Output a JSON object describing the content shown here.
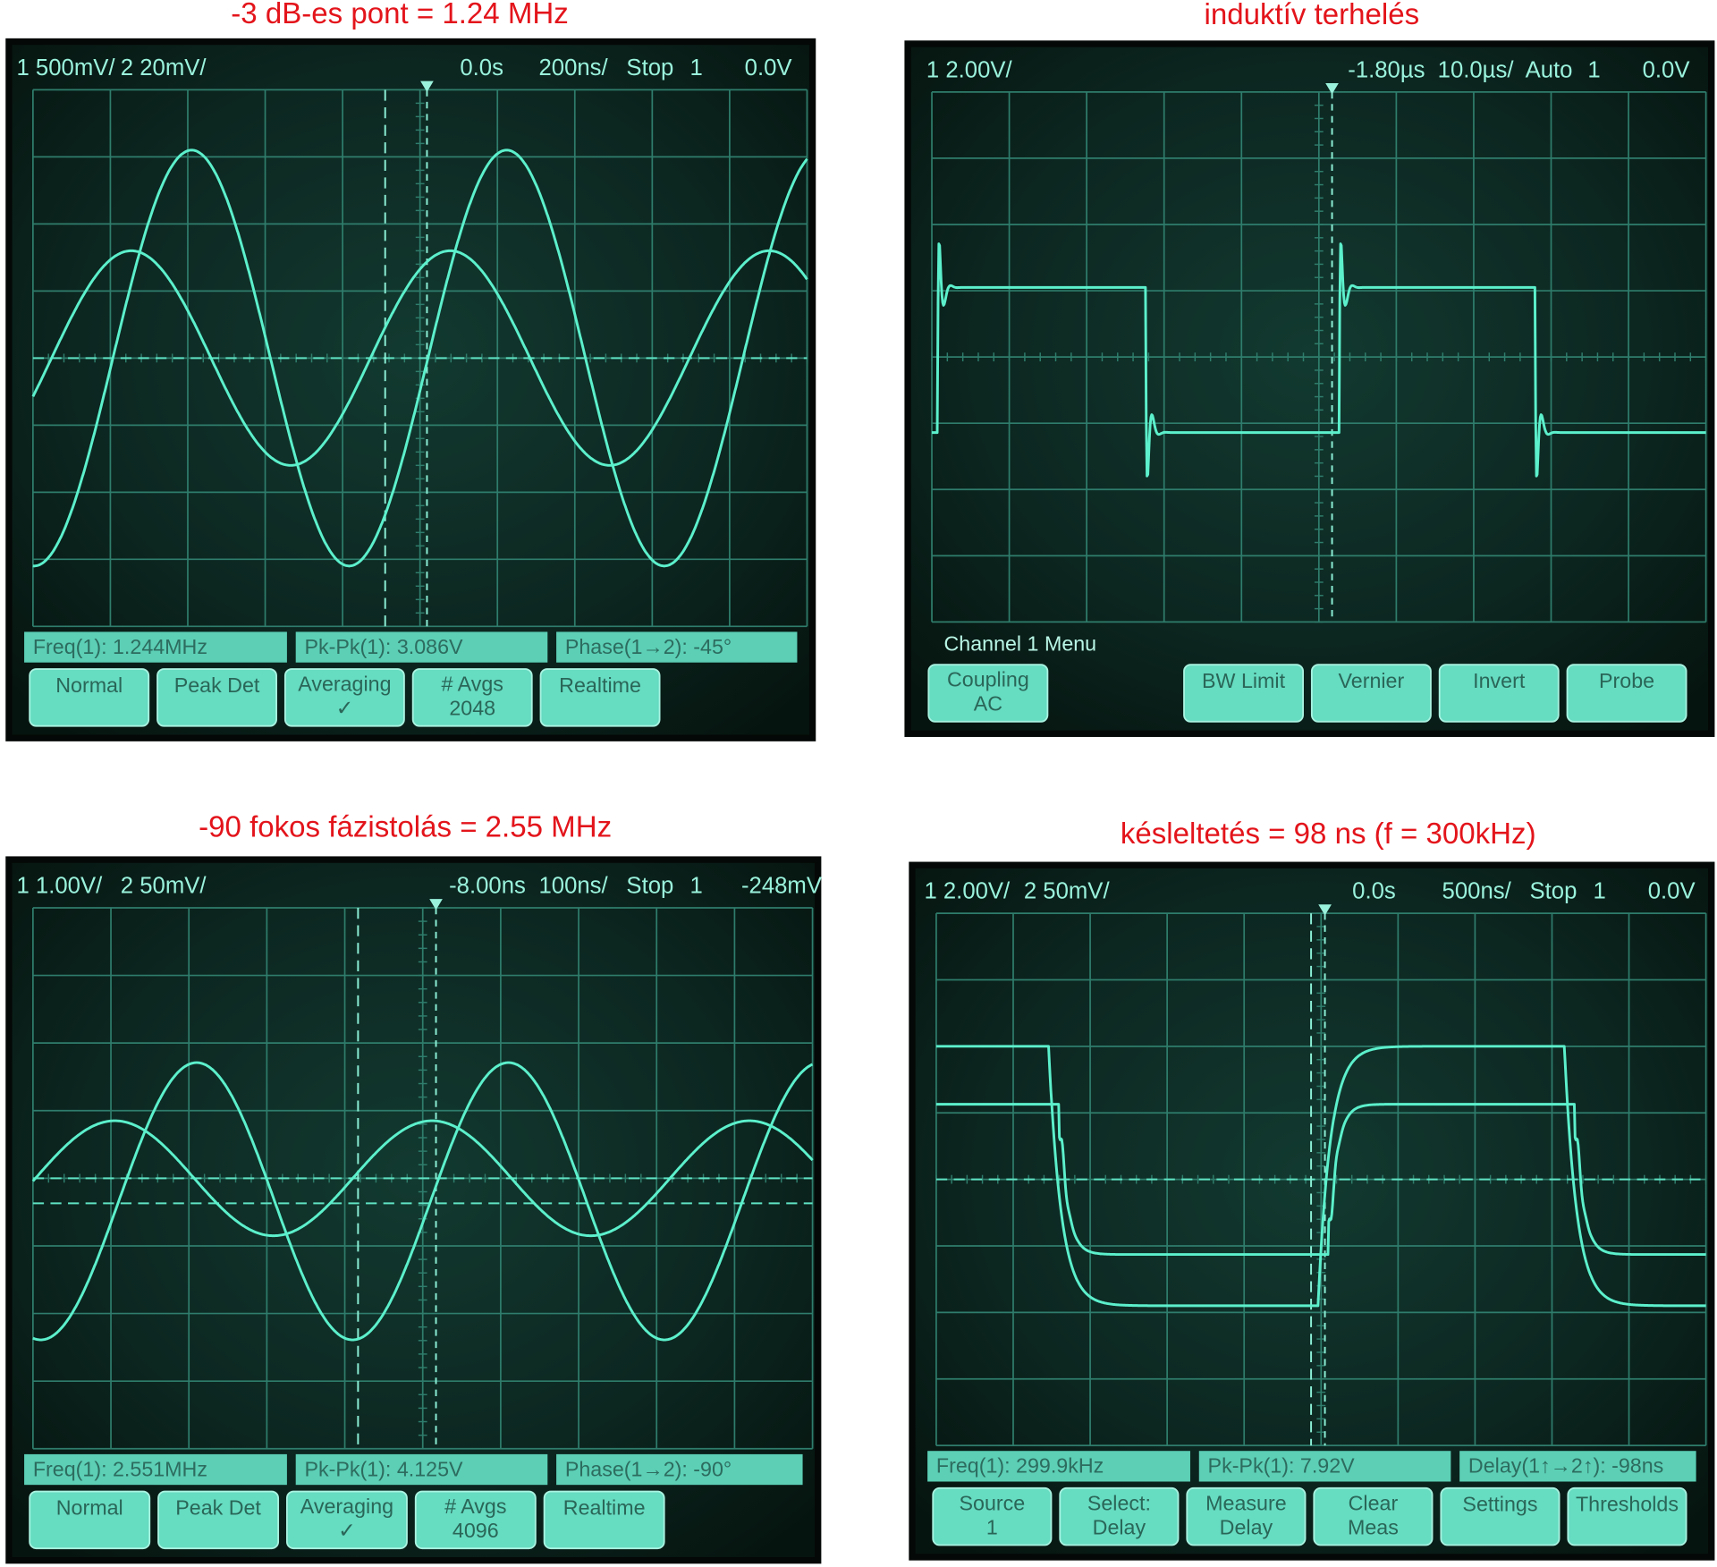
{
  "panels": [
    {
      "title": "-3 dB-es pont = 1.24 MHz",
      "status": [
        "1 500mV/",
        "2 20mV/",
        "0.0s",
        "200ns/",
        "Stop",
        "1",
        "0.0V"
      ],
      "measurements": [
        "Freq(1): 1.244MHz",
        "Pk-Pk(1): 3.086V",
        "Phase(1→2): -45°"
      ],
      "softkeys": [
        [
          "Normal"
        ],
        [
          "Peak Det"
        ],
        [
          "Averaging",
          "✓"
        ],
        [
          "# Avgs",
          "2048"
        ],
        [
          "Realtime"
        ],
        null
      ]
    },
    {
      "title": "induktív terhelés",
      "status": [
        "1 2.00V/",
        "-1.80µs",
        "10.0µs/",
        "Auto",
        "1",
        "0.0V"
      ],
      "menu_title": "Channel 1 Menu",
      "softkeys": [
        [
          "Coupling",
          "AC"
        ],
        null,
        [
          "BW Limit"
        ],
        [
          "Vernier"
        ],
        [
          "Invert"
        ],
        [
          "Probe"
        ]
      ]
    },
    {
      "title": "-90 fokos fázistolás = 2.55 MHz",
      "status": [
        "1 1.00V/",
        "2 50mV/",
        "-8.00ns",
        "100ns/",
        "Stop",
        "1",
        "-248mV"
      ],
      "measurements": [
        "Freq(1): 2.551MHz",
        "Pk-Pk(1): 4.125V",
        "Phase(1→2): -90°"
      ],
      "softkeys": [
        [
          "Normal"
        ],
        [
          "Peak Det"
        ],
        [
          "Averaging",
          "✓"
        ],
        [
          "# Avgs",
          "4096"
        ],
        [
          "Realtime"
        ],
        null
      ]
    },
    {
      "title": "késleltetés = 98 ns (f = 300kHz)",
      "status": [
        "1 2.00V/",
        "2 50mV/",
        "0.0s",
        "500ns/",
        "Stop",
        "1",
        "0.0V"
      ],
      "measurements": [
        "Freq(1): 299.9kHz",
        "Pk-Pk(1): 7.92V",
        "Delay(1↑→2↑): -98ns"
      ],
      "softkeys": [
        [
          "Source",
          "1"
        ],
        [
          "Select:",
          "Delay"
        ],
        [
          "Measure",
          "Delay"
        ],
        [
          "Clear",
          "Meas"
        ],
        [
          "Settings"
        ],
        [
          "Thresholds"
        ]
      ]
    }
  ]
}
